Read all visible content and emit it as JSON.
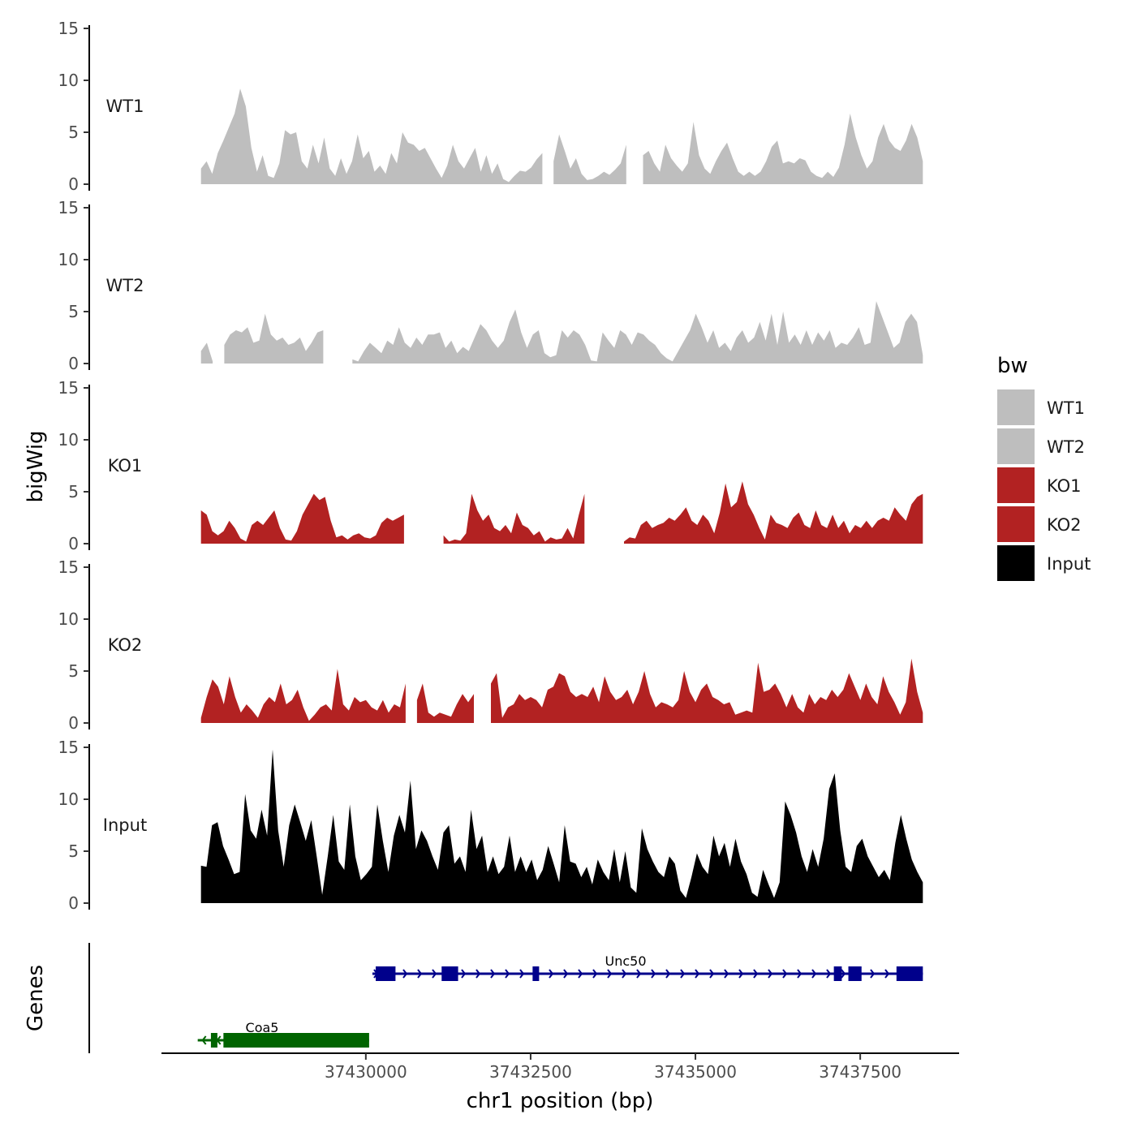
{
  "chart_data": {
    "type": "area",
    "subtype": "genome-browser-tracks",
    "ylabel": "bigWig",
    "xlabel": "chr1 position (bp)",
    "genes_label": "Genes",
    "xlim": [
      37426900,
      37439000
    ],
    "x_ticks": [
      37430000,
      37432500,
      37435000,
      37437500
    ],
    "x_tick_labels": [
      "37430000",
      "37432500",
      "37435000",
      "37437500"
    ],
    "y_range": [
      0,
      15
    ],
    "y_ticks": [
      0,
      5,
      10,
      15
    ],
    "y_tick_labels": [
      "0",
      "5",
      "10",
      "15"
    ],
    "legend": {
      "title": "bw",
      "entries": [
        {
          "label": "WT1",
          "color": "#BEBEBE"
        },
        {
          "label": "WT2",
          "color": "#BEBEBE"
        },
        {
          "label": "KO1",
          "color": "#B22222"
        },
        {
          "label": "KO2",
          "color": "#B22222"
        },
        {
          "label": "Input",
          "color": "#000000"
        }
      ]
    },
    "x_start": 37427500,
    "x_end": 37438450,
    "series": [
      {
        "name": "WT1",
        "color": "#BEBEBE",
        "gaps": [
          [
            37432700,
            37432800
          ],
          [
            37433980,
            37434180
          ]
        ],
        "values": [
          1.5,
          2.2,
          1.0,
          3.0,
          4.2,
          5.5,
          6.8,
          9.2,
          7.5,
          3.5,
          1.2,
          2.8,
          0.8,
          0.6,
          2.0,
          5.2,
          4.8,
          5.0,
          2.2,
          1.5,
          3.8,
          2.0,
          4.5,
          1.5,
          0.8,
          2.5,
          1.0,
          2.2,
          4.8,
          2.5,
          3.2,
          1.2,
          1.8,
          1.0,
          3.0,
          2.0,
          5.0,
          4.0,
          3.8,
          3.2,
          3.5,
          2.5,
          1.5,
          0.6,
          1.8,
          3.8,
          2.2,
          1.5,
          2.5,
          3.5,
          1.2,
          2.8,
          1.0,
          2.0,
          0.5,
          0.2,
          0.8,
          1.3,
          1.2,
          1.6,
          2.4,
          3.0,
          4.5,
          2.2,
          4.8,
          3.2,
          1.5,
          2.5,
          1.0,
          0.4,
          0.5,
          0.8,
          1.2,
          0.9,
          1.4,
          2.0,
          3.8,
          6.8,
          4.5,
          2.8,
          3.2,
          2.0,
          1.2,
          3.8,
          2.5,
          1.8,
          1.2,
          2.0,
          6.0,
          2.8,
          1.5,
          1.0,
          2.2,
          3.2,
          4.0,
          2.5,
          1.2,
          0.8,
          1.2,
          0.8,
          1.2,
          2.2,
          3.6,
          4.2,
          2.0,
          2.2,
          2.0,
          2.5,
          2.3,
          1.2,
          0.8,
          0.6,
          1.2,
          0.7,
          1.6,
          3.8,
          6.8,
          4.5,
          2.8,
          1.5,
          2.2,
          4.5,
          5.8,
          4.2,
          3.5,
          3.2,
          4.2,
          5.8,
          4.5,
          2.2
        ]
      },
      {
        "name": "WT2",
        "color": "#BEBEBE",
        "gaps": [
          [
            37427700,
            37427850
          ],
          [
            37429400,
            37429750
          ],
          [
            37434050,
            37434100
          ],
          [
            37435550,
            37435600
          ]
        ],
        "values": [
          1.2,
          2.0,
          0.2,
          0.3,
          1.8,
          2.8,
          3.2,
          3.0,
          3.5,
          2.0,
          2.2,
          4.8,
          2.8,
          2.2,
          2.5,
          1.8,
          2.0,
          2.5,
          1.2,
          2.0,
          3.0,
          3.2,
          4.0,
          2.8,
          2.2,
          1.2,
          0.4,
          0.2,
          1.2,
          2.0,
          1.5,
          1.0,
          2.2,
          1.8,
          3.5,
          2.0,
          1.5,
          2.5,
          1.8,
          2.8,
          2.8,
          3.0,
          1.5,
          2.2,
          1.0,
          1.6,
          1.2,
          2.5,
          3.8,
          3.2,
          2.2,
          1.5,
          2.2,
          4.0,
          5.2,
          3.0,
          1.5,
          2.8,
          3.2,
          1.0,
          0.6,
          0.8,
          3.2,
          2.5,
          3.2,
          2.8,
          1.8,
          0.3,
          0.2,
          3.0,
          2.2,
          1.5,
          3.2,
          2.8,
          1.8,
          3.0,
          2.8,
          2.2,
          1.8,
          1.0,
          0.5,
          0.2,
          1.2,
          2.2,
          3.2,
          4.8,
          3.5,
          2.0,
          3.2,
          1.5,
          2.0,
          1.2,
          2.5,
          3.2,
          2.0,
          2.5,
          4.0,
          2.2,
          4.8,
          1.8,
          5.0,
          2.0,
          2.8,
          1.8,
          3.2,
          1.8,
          3.0,
          2.2,
          3.2,
          1.5,
          2.0,
          1.8,
          2.5,
          3.5,
          1.8,
          2.0,
          6.0,
          4.5,
          3.0,
          1.5,
          2.0,
          4.0,
          4.8,
          4.0,
          0.8
        ]
      },
      {
        "name": "KO1",
        "color": "#B22222",
        "gaps": [
          [
            37430600,
            37431100
          ],
          [
            37433400,
            37433900
          ],
          [
            37435800,
            37435850
          ]
        ],
        "values": [
          3.2,
          2.8,
          1.2,
          0.8,
          1.2,
          2.2,
          1.5,
          0.5,
          0.2,
          1.8,
          2.2,
          1.8,
          2.5,
          3.2,
          1.5,
          0.4,
          0.3,
          1.2,
          2.8,
          3.8,
          4.8,
          4.2,
          4.5,
          2.2,
          0.6,
          0.8,
          0.4,
          0.8,
          1.0,
          0.6,
          0.5,
          0.8,
          2.0,
          2.5,
          2.2,
          2.5,
          2.8,
          2.2,
          1.2,
          0.5,
          2.8,
          2.0,
          1.5,
          0.8,
          0.2,
          0.4,
          0.3,
          1.0,
          4.8,
          3.2,
          2.2,
          2.8,
          1.5,
          1.2,
          1.8,
          1.0,
          3.0,
          1.8,
          1.5,
          0.8,
          1.2,
          0.2,
          0.6,
          0.4,
          0.5,
          1.5,
          0.5,
          2.8,
          4.8,
          3.0,
          5.2,
          3.8,
          2.2,
          1.2,
          0.5,
          0.2,
          0.6,
          0.5,
          1.8,
          2.2,
          1.5,
          1.8,
          2.0,
          2.5,
          2.2,
          2.8,
          3.5,
          2.2,
          1.8,
          2.8,
          2.2,
          1.0,
          3.0,
          5.8,
          3.5,
          4.0,
          6.0,
          3.8,
          2.8,
          1.5,
          0.4,
          2.8,
          2.0,
          1.8,
          1.5,
          2.5,
          3.0,
          1.8,
          1.5,
          3.2,
          1.8,
          1.5,
          2.8,
          1.5,
          2.2,
          1.0,
          1.8,
          1.5,
          2.2,
          1.5,
          2.2,
          2.5,
          2.2,
          3.5,
          2.8,
          2.2,
          3.8,
          4.5,
          4.8
        ]
      },
      {
        "name": "KO2",
        "color": "#B22222",
        "gaps": [
          [
            37430650,
            37430700
          ],
          [
            37431700,
            37431850
          ]
        ],
        "values": [
          0.5,
          2.5,
          4.2,
          3.5,
          1.8,
          4.5,
          2.5,
          1.0,
          1.8,
          1.2,
          0.5,
          1.8,
          2.5,
          2.0,
          3.8,
          1.8,
          2.2,
          3.2,
          1.5,
          0.2,
          0.8,
          1.5,
          1.8,
          1.2,
          5.2,
          1.8,
          1.2,
          2.5,
          2.0,
          2.2,
          1.5,
          1.2,
          2.2,
          1.0,
          1.8,
          1.5,
          3.8,
          1.2,
          2.2,
          3.8,
          1.0,
          0.6,
          1.0,
          0.8,
          0.6,
          1.8,
          2.8,
          2.0,
          2.8,
          4.5,
          3.2,
          3.8,
          4.8,
          0.5,
          1.5,
          1.8,
          2.8,
          2.2,
          2.5,
          2.2,
          1.5,
          3.2,
          3.5,
          4.8,
          4.5,
          3.0,
          2.5,
          2.8,
          2.5,
          3.5,
          2.0,
          4.5,
          3.0,
          2.2,
          2.5,
          3.2,
          1.8,
          3.0,
          5.0,
          2.8,
          1.5,
          2.0,
          1.8,
          1.5,
          2.2,
          5.0,
          3.0,
          2.0,
          3.2,
          3.8,
          2.5,
          2.2,
          1.8,
          2.0,
          0.8,
          1.0,
          1.2,
          1.0,
          5.8,
          3.0,
          3.2,
          3.8,
          2.8,
          1.5,
          2.8,
          1.5,
          1.0,
          2.8,
          1.8,
          2.5,
          2.2,
          3.2,
          2.5,
          3.2,
          4.8,
          3.5,
          2.2,
          3.8,
          2.5,
          1.8,
          4.5,
          3.0,
          2.0,
          0.8,
          2.0,
          6.2,
          3.0,
          1.0
        ]
      },
      {
        "name": "Input",
        "color": "#000000",
        "values": [
          3.6,
          3.5,
          7.5,
          7.8,
          5.5,
          4.2,
          2.8,
          3.0,
          10.5,
          7.0,
          6.2,
          9.0,
          6.5,
          14.8,
          7.0,
          3.5,
          7.5,
          9.5,
          7.8,
          6.0,
          8.0,
          4.5,
          0.8,
          4.5,
          8.5,
          4.0,
          3.2,
          9.5,
          4.5,
          2.2,
          2.8,
          3.5,
          9.5,
          6.0,
          3.0,
          6.5,
          8.5,
          6.8,
          11.8,
          5.2,
          7.0,
          6.0,
          4.5,
          3.2,
          6.8,
          7.5,
          3.8,
          4.5,
          3.0,
          9.0,
          5.2,
          6.5,
          3.0,
          4.5,
          2.8,
          3.5,
          6.5,
          3.0,
          4.5,
          3.0,
          4.2,
          2.2,
          3.2,
          5.5,
          3.8,
          2.0,
          7.5,
          4.0,
          3.8,
          2.5,
          3.5,
          1.8,
          4.2,
          3.0,
          2.2,
          5.2,
          2.0,
          5.0,
          1.5,
          1.0,
          7.2,
          5.2,
          4.0,
          3.0,
          2.5,
          4.5,
          3.8,
          1.2,
          0.5,
          2.5,
          4.8,
          3.5,
          2.8,
          6.5,
          4.5,
          5.8,
          3.5,
          6.2,
          4.0,
          2.8,
          1.0,
          0.6,
          3.2,
          1.8,
          0.5,
          2.0,
          9.8,
          8.5,
          6.8,
          4.5,
          3.0,
          5.2,
          3.5,
          6.2,
          11.0,
          12.5,
          7.0,
          3.5,
          3.0,
          5.5,
          6.2,
          4.5,
          3.5,
          2.5,
          3.2,
          2.2,
          5.8,
          8.5,
          6.2,
          4.2,
          3.0,
          2.0
        ]
      }
    ],
    "genes": [
      {
        "name": "Unc50",
        "color": "#00008B",
        "start": 37430100,
        "end": 37438450,
        "strand": "+",
        "exons": [
          [
            37430150,
            37430450
          ],
          [
            37431150,
            37431400
          ],
          [
            37432530,
            37432620
          ],
          [
            37437100,
            37437220
          ],
          [
            37437320,
            37437520
          ],
          [
            37438050,
            37438450
          ]
        ]
      },
      {
        "name": "Coa5",
        "color": "#006400",
        "start": 37427450,
        "end": 37430050,
        "strand": "-",
        "exons": [
          [
            37427650,
            37427720
          ],
          [
            37427840,
            37430050
          ]
        ]
      }
    ]
  }
}
